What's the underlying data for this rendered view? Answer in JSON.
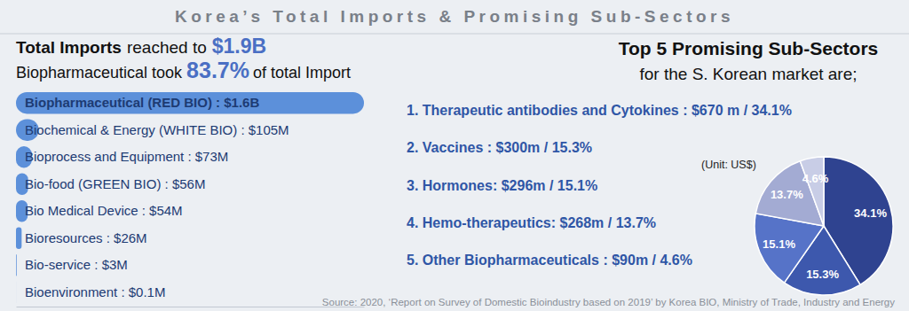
{
  "header": {
    "title": "Korea’s Total Imports & Promising Sub-Sectors",
    "total_bold": "Total Imports",
    "total_text": "reached to",
    "total_value": "$1.9B",
    "share_text_1": "Biopharmaceutical took",
    "share_value": "83.7%",
    "share_text_2": "of total Import",
    "right_title": "Top 5 Promising Sub-Sectors",
    "right_subtitle": "for the S. Korean market are;",
    "source": "Source: 2020, ‘Report on Survey of Domestic Bioindustry based on 2019’ by Korea BIO, Ministry of Trade, Industry and Energy"
  },
  "chart_data": [
    {
      "type": "bar",
      "orientation": "horizontal",
      "categories": [
        "Biopharmaceutical (RED BIO) : $1.6B",
        "Biochemical & Energy (WHITE BIO) : $105M",
        "Bioprocess and Equipment : $73M",
        "Bio-food (GREEN BIO) : $56M",
        "Bio Medical Device : $54M",
        "Bioresources : $26M",
        "Bio-service : $3M",
        "Bioenvironment : $0.1M"
      ],
      "values": [
        1600,
        105,
        73,
        56,
        54,
        26,
        3,
        0.1
      ],
      "color": "#5c90da",
      "xlim": [
        0,
        1600
      ],
      "xticks": [],
      "tick_labels": "y"
    },
    {
      "type": "pie",
      "categories": [
        "1. Therapeutic antibodies and Cytokines : $670 m / 34.1%",
        "2. Vaccines : $300m / 15.3%",
        "3. Hormones: $296m / 15.1%",
        "4. Hemo-therapeutics: $268m / 13.7%",
        "5. Other Biopharmaceuticals : $90m / 4.6%"
      ],
      "values": [
        34.1,
        15.3,
        15.1,
        13.7,
        4.6
      ],
      "value_labels": [
        "34.1%",
        "15.3%",
        "15.1%",
        "13.7%",
        "4.6%"
      ],
      "data_labels": true,
      "colors": [
        "#2f4390",
        "#3d58ad",
        "#5673c8",
        "#a3abd3",
        "#c8cde6"
      ],
      "annotation": "(Unit: US$)"
    }
  ]
}
